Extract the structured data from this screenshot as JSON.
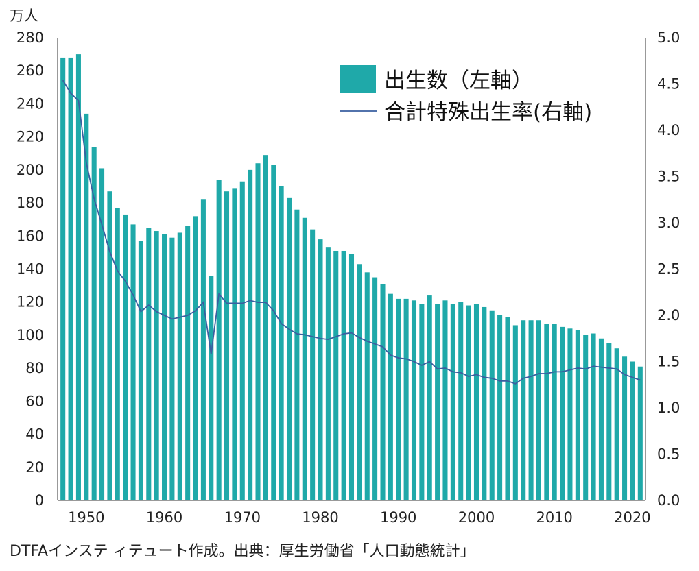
{
  "source_note": "DTFAインステ ィテュート作成。出典：厚生労働省「人口動態統計」",
  "colors": {
    "bar": "#1fa9a9",
    "line": "#3a5fa0",
    "axis": "#333333"
  },
  "chart_data": {
    "type": "bar",
    "y_unit_label": "万人",
    "ylim": [
      0,
      280
    ],
    "y_ticks": [
      0,
      20,
      40,
      60,
      80,
      100,
      120,
      140,
      160,
      180,
      200,
      220,
      240,
      260,
      280
    ],
    "y2lim": [
      0.0,
      5.0
    ],
    "y2_ticks": [
      "0.0",
      "0.5",
      "1.0",
      "1.5",
      "2.0",
      "2.5",
      "3.0",
      "3.5",
      "4.0",
      "4.5",
      "5.0"
    ],
    "x_ticks": [
      1950,
      1960,
      1970,
      1980,
      1990,
      2000,
      2010,
      2020
    ],
    "grid": false,
    "legend_position": "top-right",
    "years": [
      1947,
      1948,
      1949,
      1950,
      1951,
      1952,
      1953,
      1954,
      1955,
      1956,
      1957,
      1958,
      1959,
      1960,
      1961,
      1962,
      1963,
      1964,
      1965,
      1966,
      1967,
      1968,
      1969,
      1970,
      1971,
      1972,
      1973,
      1974,
      1975,
      1976,
      1977,
      1978,
      1979,
      1980,
      1981,
      1982,
      1983,
      1984,
      1985,
      1986,
      1987,
      1988,
      1989,
      1990,
      1991,
      1992,
      1993,
      1994,
      1995,
      1996,
      1997,
      1998,
      1999,
      2000,
      2001,
      2002,
      2003,
      2004,
      2005,
      2006,
      2007,
      2008,
      2009,
      2010,
      2011,
      2012,
      2013,
      2014,
      2015,
      2016,
      2017,
      2018,
      2019,
      2020,
      2021
    ],
    "series": [
      {
        "name": "出生数（左軸）",
        "type": "bar",
        "axis": "left",
        "values": [
          268,
          268,
          270,
          234,
          214,
          201,
          187,
          177,
          173,
          167,
          157,
          165,
          163,
          161,
          159,
          162,
          166,
          172,
          182,
          136,
          194,
          187,
          189,
          193,
          200,
          204,
          209,
          203,
          190,
          183,
          176,
          171,
          164,
          158,
          153,
          151,
          151,
          149,
          143,
          138,
          135,
          131,
          125,
          122,
          122,
          121,
          119,
          124,
          119,
          121,
          119,
          120,
          118,
          119,
          117,
          115,
          112,
          111,
          106,
          109,
          109,
          109,
          107,
          107,
          105,
          104,
          103,
          100,
          101,
          98,
          95,
          92,
          87,
          84,
          81
        ]
      },
      {
        "name": "合計特殊出生率(右軸)",
        "type": "line",
        "axis": "right",
        "values": [
          4.54,
          4.4,
          4.32,
          3.65,
          3.26,
          2.98,
          2.69,
          2.48,
          2.37,
          2.22,
          2.04,
          2.11,
          2.04,
          2.0,
          1.96,
          1.98,
          2.0,
          2.05,
          2.14,
          1.58,
          2.23,
          2.13,
          2.13,
          2.13,
          2.16,
          2.14,
          2.14,
          2.05,
          1.91,
          1.85,
          1.8,
          1.79,
          1.77,
          1.75,
          1.74,
          1.77,
          1.8,
          1.81,
          1.76,
          1.72,
          1.69,
          1.66,
          1.57,
          1.54,
          1.53,
          1.5,
          1.46,
          1.5,
          1.42,
          1.43,
          1.39,
          1.38,
          1.34,
          1.36,
          1.33,
          1.32,
          1.29,
          1.29,
          1.26,
          1.32,
          1.34,
          1.37,
          1.37,
          1.39,
          1.39,
          1.41,
          1.43,
          1.42,
          1.45,
          1.44,
          1.43,
          1.42,
          1.36,
          1.33,
          1.3
        ]
      }
    ]
  }
}
